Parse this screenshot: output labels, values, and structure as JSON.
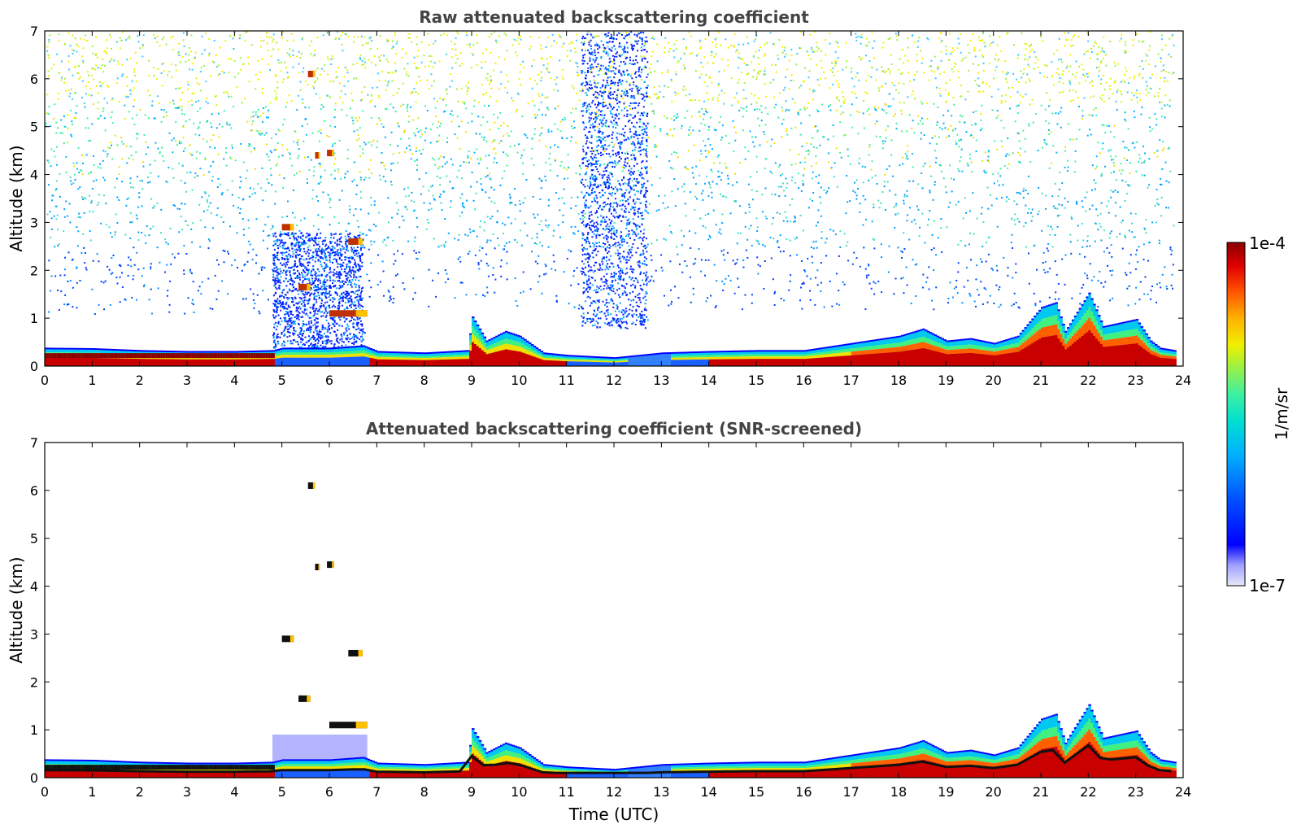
{
  "chart_data": [
    {
      "type": "heatmap",
      "panel": "top",
      "title": "Raw attenuated backscattering coefficient",
      "xlabel": "",
      "ylabel": "Altitude (km)",
      "xlim": [
        0,
        24
      ],
      "ylim": [
        0,
        7
      ],
      "xticks": [
        "0",
        "1",
        "2",
        "3",
        "4",
        "5",
        "6",
        "7",
        "8",
        "9",
        "10",
        "11",
        "12",
        "13",
        "14",
        "15",
        "16",
        "17",
        "18",
        "19",
        "20",
        "21",
        "22",
        "23",
        "24"
      ],
      "yticks": [
        "0",
        "1",
        "2",
        "3",
        "4",
        "5",
        "6",
        "7"
      ],
      "boundary_layer_top_km": [
        [
          0,
          0.35
        ],
        [
          1,
          0.34
        ],
        [
          2,
          0.3
        ],
        [
          3,
          0.28
        ],
        [
          4,
          0.28
        ],
        [
          4.8,
          0.3
        ],
        [
          5,
          0.35
        ],
        [
          6,
          0.35
        ],
        [
          6.7,
          0.4
        ],
        [
          7,
          0.28
        ],
        [
          8,
          0.25
        ],
        [
          8.9,
          0.3
        ],
        [
          9,
          1.0
        ],
        [
          9.3,
          0.5
        ],
        [
          9.7,
          0.7
        ],
        [
          10,
          0.6
        ],
        [
          10.5,
          0.25
        ],
        [
          11,
          0.2
        ],
        [
          12,
          0.15
        ],
        [
          13,
          0.25
        ],
        [
          14,
          0.28
        ],
        [
          15,
          0.3
        ],
        [
          16,
          0.3
        ],
        [
          17,
          0.45
        ],
        [
          18,
          0.6
        ],
        [
          18.5,
          0.75
        ],
        [
          19,
          0.5
        ],
        [
          19.5,
          0.55
        ],
        [
          20,
          0.45
        ],
        [
          20.5,
          0.6
        ],
        [
          21,
          1.2
        ],
        [
          21.3,
          1.3
        ],
        [
          21.5,
          0.7
        ],
        [
          22,
          1.5
        ],
        [
          22.3,
          0.8
        ],
        [
          23,
          0.95
        ],
        [
          23.3,
          0.5
        ],
        [
          23.5,
          0.35
        ],
        [
          23.8,
          0.3
        ]
      ],
      "cloud_layers": [
        {
          "t0": 5.0,
          "t1": 5.25,
          "alt_km": 2.9
        },
        {
          "t0": 5.35,
          "t1": 5.6,
          "alt_km": 1.65
        },
        {
          "t0": 5.55,
          "t1": 5.7,
          "alt_km": 6.1
        },
        {
          "t0": 5.7,
          "t1": 5.8,
          "alt_km": 4.4
        },
        {
          "t0": 5.95,
          "t1": 6.1,
          "alt_km": 4.45
        },
        {
          "t0": 6.0,
          "t1": 6.8,
          "alt_km": 1.1
        },
        {
          "t0": 6.4,
          "t1": 6.7,
          "alt_km": 2.6
        }
      ]
    },
    {
      "type": "heatmap",
      "panel": "bottom",
      "title": "Attenuated backscattering coefficient (SNR-screened)",
      "xlabel": "Time (UTC)",
      "ylabel": "Altitude (km)",
      "xlim": [
        0,
        24
      ],
      "ylim": [
        0,
        7
      ],
      "xticks": [
        "0",
        "1",
        "2",
        "3",
        "4",
        "5",
        "6",
        "7",
        "8",
        "9",
        "10",
        "11",
        "12",
        "13",
        "14",
        "15",
        "16",
        "17",
        "18",
        "19",
        "20",
        "21",
        "22",
        "23",
        "24"
      ],
      "yticks": [
        "0",
        "1",
        "2",
        "3",
        "4",
        "5",
        "6",
        "7"
      ]
    }
  ],
  "colorbar": {
    "max_label": "1e-4",
    "min_label": "1e-7",
    "label": "1/m/sr",
    "colors": [
      "#e8e8f8",
      "#c8c8f0",
      "#a0a0ff",
      "#0000ff",
      "#0050ff",
      "#00a0ff",
      "#00e0e0",
      "#40f0a0",
      "#a0f040",
      "#f0f000",
      "#ffc000",
      "#ff7000",
      "#ff2000",
      "#d00000",
      "#8b0000"
    ]
  }
}
